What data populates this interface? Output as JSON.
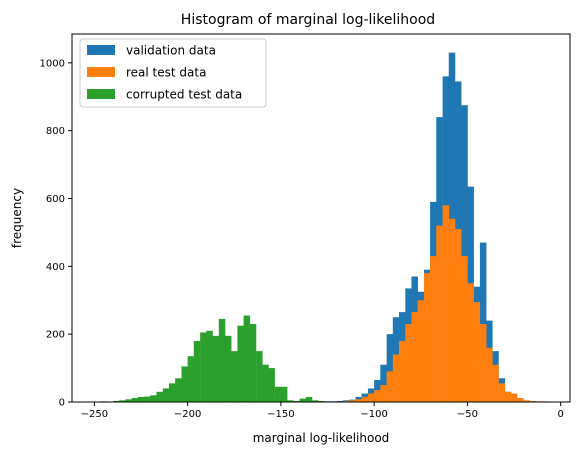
{
  "chart_data": {
    "type": "bar",
    "title": "Histogram of marginal log-likelihood",
    "xlabel": "marginal log-likelihood",
    "ylabel": "frequency",
    "xlim": [
      -262,
      5
    ],
    "ylim": [
      0,
      1085
    ],
    "xticks": [
      -250,
      -200,
      -150,
      -100,
      -50,
      0
    ],
    "yticks": [
      0,
      200,
      400,
      600,
      800,
      1000
    ],
    "xtick_labels": [
      "−250",
      "−200",
      "−150",
      "−100",
      "−50",
      "0"
    ],
    "ytick_labels": [
      "0",
      "200",
      "400",
      "600",
      "800",
      "1000"
    ],
    "bin_width": 3.333,
    "grid": false,
    "legend_position": "top-left",
    "series": [
      {
        "name": "validation data",
        "color": "#1f77b4",
        "bins": [
          [
            -126.7,
            2
          ],
          [
            -123.3,
            2
          ],
          [
            -120,
            3
          ],
          [
            -116.7,
            5
          ],
          [
            -113.3,
            7
          ],
          [
            -110,
            15
          ],
          [
            -106.7,
            25
          ],
          [
            -103.3,
            40
          ],
          [
            -100,
            65
          ],
          [
            -96.7,
            110
          ],
          [
            -93.3,
            200
          ],
          [
            -90,
            250
          ],
          [
            -86.7,
            265
          ],
          [
            -83.3,
            335
          ],
          [
            -80,
            370
          ],
          [
            -76.7,
            325
          ],
          [
            -73.3,
            390
          ],
          [
            -70,
            590
          ],
          [
            -66.7,
            840
          ],
          [
            -63.3,
            960
          ],
          [
            -60,
            1030
          ],
          [
            -56.7,
            945
          ],
          [
            -53.3,
            875
          ],
          [
            -50,
            635
          ],
          [
            -46.7,
            340
          ],
          [
            -43.3,
            470
          ],
          [
            -40,
            240
          ],
          [
            -36.7,
            150
          ],
          [
            -33.3,
            70
          ],
          [
            -30,
            30
          ],
          [
            -26.7,
            12
          ],
          [
            -23.3,
            5
          ]
        ]
      },
      {
        "name": "real test data",
        "color": "#ff7f0e",
        "bins": [
          [
            -116.7,
            3
          ],
          [
            -113.3,
            5
          ],
          [
            -110,
            8
          ],
          [
            -106.7,
            15
          ],
          [
            -103.3,
            25
          ],
          [
            -100,
            35
          ],
          [
            -96.7,
            50
          ],
          [
            -93.3,
            90
          ],
          [
            -90,
            140
          ],
          [
            -86.7,
            180
          ],
          [
            -83.3,
            230
          ],
          [
            -80,
            265
          ],
          [
            -76.7,
            300
          ],
          [
            -73.3,
            380
          ],
          [
            -70,
            430
          ],
          [
            -66.7,
            520
          ],
          [
            -63.3,
            580
          ],
          [
            -60,
            540
          ],
          [
            -56.7,
            510
          ],
          [
            -53.3,
            430
          ],
          [
            -50,
            350
          ],
          [
            -46.7,
            295
          ],
          [
            -43.3,
            230
          ],
          [
            -40,
            160
          ],
          [
            -36.7,
            110
          ],
          [
            -33.3,
            55
          ],
          [
            -30,
            30
          ],
          [
            -26.7,
            25
          ],
          [
            -23.3,
            12
          ],
          [
            -20,
            5
          ],
          [
            -16.7,
            3
          ],
          [
            -13.3,
            2
          ],
          [
            -10,
            2
          ],
          [
            -6.7,
            1
          ]
        ]
      },
      {
        "name": "corrupted test data",
        "color": "#2ca02c",
        "bins": [
          [
            -246.7,
            2
          ],
          [
            -240,
            3
          ],
          [
            -236.7,
            5
          ],
          [
            -233.3,
            8
          ],
          [
            -230,
            12
          ],
          [
            -226.7,
            15
          ],
          [
            -223.3,
            16
          ],
          [
            -220,
            20
          ],
          [
            -216.7,
            30
          ],
          [
            -213.3,
            40
          ],
          [
            -210,
            55
          ],
          [
            -206.7,
            70
          ],
          [
            -203.3,
            105
          ],
          [
            -200,
            135
          ],
          [
            -196.7,
            180
          ],
          [
            -193.3,
            205
          ],
          [
            -190,
            210
          ],
          [
            -186.7,
            195
          ],
          [
            -183.3,
            245
          ],
          [
            -180,
            195
          ],
          [
            -176.7,
            150
          ],
          [
            -173.3,
            225
          ],
          [
            -170,
            255
          ],
          [
            -166.7,
            230
          ],
          [
            -163.3,
            150
          ],
          [
            -160,
            110
          ],
          [
            -156.7,
            100
          ],
          [
            -153.3,
            45
          ],
          [
            -150,
            45
          ],
          [
            -146.7,
            5
          ],
          [
            -143.3,
            3
          ],
          [
            -140,
            10
          ],
          [
            -136.7,
            15
          ],
          [
            -133.3,
            5
          ],
          [
            -130,
            3
          ]
        ]
      }
    ]
  }
}
